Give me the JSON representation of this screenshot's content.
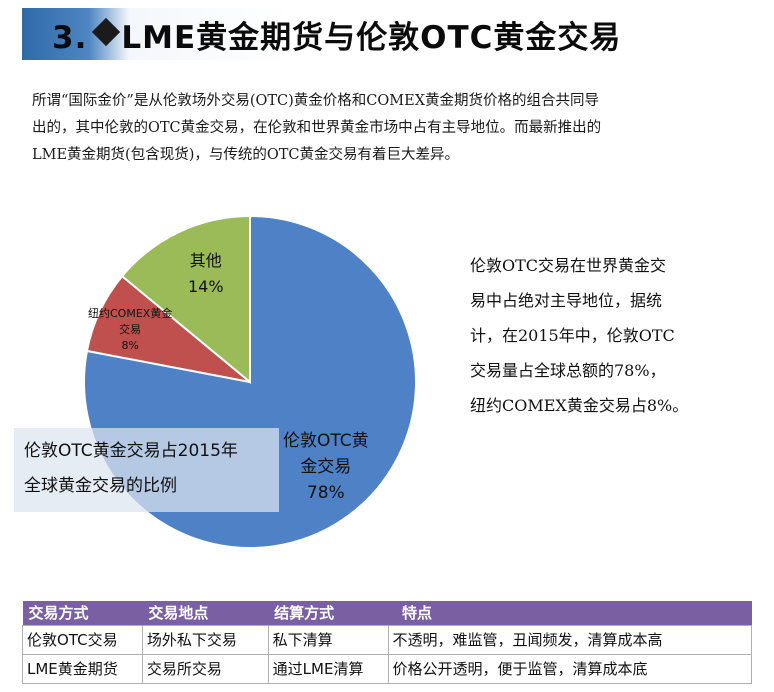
{
  "title": {
    "number": "3.",
    "text": "LME黄金期货与伦敦OTC黄金交易"
  },
  "intro": {
    "lines": [
      "所谓“国际金价”是从伦敦场外交易(OTC)黄金价格和COMEX黄金期货价格的组合共同导",
      "出的，其中伦敦的OTC黄金交易，在伦敦和世界黄金市场中占有主导地位。而最新推出的",
      "LME黄金期货(包含现货)，与传统的OTC黄金交易有着巨大差异。"
    ]
  },
  "chart_data": {
    "type": "pie",
    "title": "伦敦OTC黄金交易占2015年全球黄金交易的比例",
    "slices": [
      {
        "label_lines": [
          "伦敦OTC黄",
          "金交易"
        ],
        "value": 78,
        "display": "78%",
        "color": "#4f81c7"
      },
      {
        "label_lines": [
          "纽约COMEX黄金",
          "交易"
        ],
        "value": 8,
        "display": "8%",
        "color": "#c0504d"
      },
      {
        "label_lines": [
          "其他"
        ],
        "value": 14,
        "display": "14%",
        "color": "#9bbb59"
      }
    ]
  },
  "caption": {
    "lines": [
      "伦敦OTC黄金交易占2015年",
      "全球黄金交易的比例"
    ]
  },
  "side_note": {
    "lines": [
      "伦敦OTC交易在世界黄金交",
      "易中占绝对主导地位，据统",
      "计，在2015年中，伦敦OTC",
      "交易量占全球总额的78%，",
      "纽约COMEX黄金交易占8%。"
    ]
  },
  "table": {
    "headers": [
      "交易方式",
      "交易地点",
      "结算方式",
      "特点"
    ],
    "rows": [
      [
        "伦敦OTC交易",
        "场外私下交易",
        "私下清算",
        "不透明，难监管，丑闻频发，清算成本高"
      ],
      [
        "LME黄金期货",
        "交易所交易",
        "通过LME清算",
        "价格公开透明，便于监管，清算成本底"
      ]
    ],
    "header_color": "#7a5fa3"
  }
}
